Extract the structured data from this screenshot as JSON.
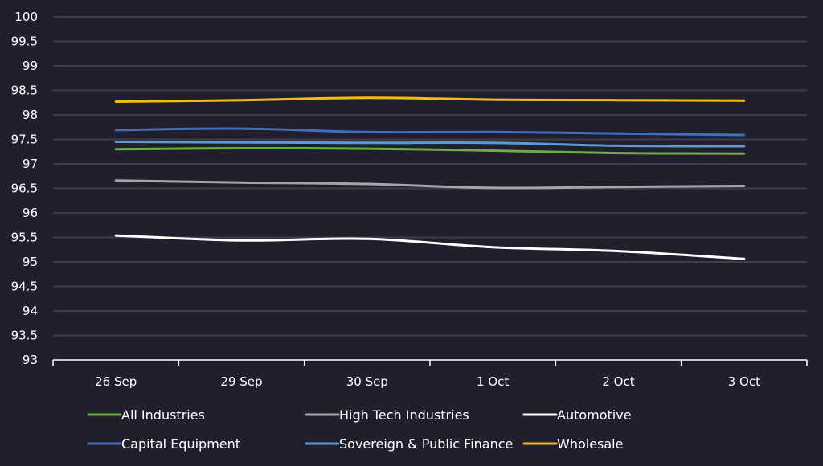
{
  "chart_data": {
    "type": "line",
    "title": "",
    "xlabel": "",
    "ylabel": "",
    "categories": [
      "26 Sep",
      "29 Sep",
      "30 Sep",
      "1 Oct",
      "2 Oct",
      "3 Oct"
    ],
    "ylim": [
      93,
      100
    ],
    "yticks": [
      "93",
      "93.5",
      "94",
      "94.5",
      "95",
      "95.5",
      "96",
      "96.5",
      "97",
      "97.5",
      "98",
      "98.5",
      "99",
      "99.5",
      "100"
    ],
    "grid": true,
    "legend_position": "bottom",
    "background": "#211f2d",
    "grid_color": "#3e3d4b",
    "series": [
      {
        "name": "All Industries",
        "color": "#6aad45",
        "values": [
          97.3,
          97.32,
          97.31,
          97.27,
          97.22,
          97.21
        ]
      },
      {
        "name": "High Tech Industries",
        "color": "#a6a6a6",
        "values": [
          96.66,
          96.62,
          96.59,
          96.51,
          96.53,
          96.55
        ]
      },
      {
        "name": "Automotive",
        "color": "#ffffff",
        "values": [
          95.54,
          95.44,
          95.47,
          95.3,
          95.22,
          95.06
        ]
      },
      {
        "name": "Capital Equipment",
        "color": "#3f6fbf",
        "values": [
          97.69,
          97.72,
          97.65,
          97.65,
          97.62,
          97.59
        ]
      },
      {
        "name": "Sovereign & Public Finance",
        "color": "#5b9bd5",
        "values": [
          97.45,
          97.44,
          97.43,
          97.43,
          97.37,
          97.36
        ]
      },
      {
        "name": "Wholesale",
        "color": "#f5be0f",
        "values": [
          98.27,
          98.3,
          98.35,
          98.31,
          98.3,
          98.29
        ]
      }
    ]
  }
}
